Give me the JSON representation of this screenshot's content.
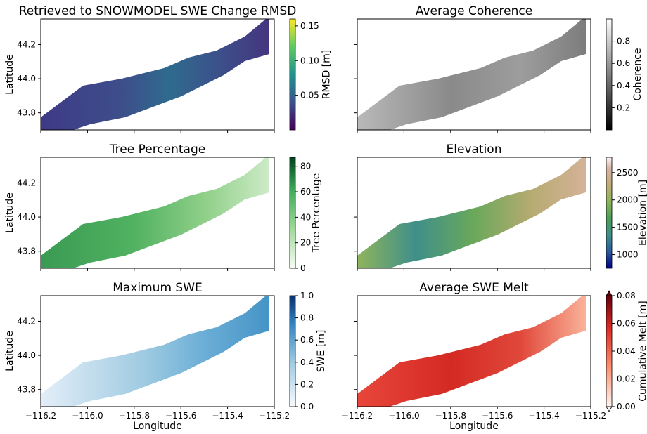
{
  "figure": {
    "x_tick_labels": [
      "−116.2",
      "−116.0",
      "−115.8",
      "−115.6",
      "−115.4",
      "−115.2"
    ],
    "y_tick_labels": [
      "43.8",
      "44.0",
      "44.2"
    ],
    "xlabel": "Longitude",
    "ylabel": "Latitude"
  },
  "chart_data": [
    {
      "type": "heatmap",
      "title": "Retrieved to SNOWMODEL SWE Change RMSD",
      "xlabel": "",
      "ylabel": "Latitude",
      "xlim": [
        -116.2,
        -115.2
      ],
      "ylim": [
        43.7,
        44.35
      ],
      "colormap": "viridis",
      "colorbar": {
        "label": "RMSD [m]",
        "range": [
          0,
          0.16
        ],
        "ticks": [
          0.05,
          0.1,
          0.15
        ],
        "tick_labels": [
          "0.05",
          "0.10",
          "0.15"
        ]
      }
    },
    {
      "type": "heatmap",
      "title": "Average Coherence",
      "xlabel": "",
      "ylabel": "",
      "xlim": [
        -116.2,
        -115.2
      ],
      "ylim": [
        43.7,
        44.35
      ],
      "colormap": "gray",
      "colorbar": {
        "label": "Coherence",
        "range": [
          0,
          1
        ],
        "ticks": [
          0.2,
          0.4,
          0.6,
          0.8
        ],
        "tick_labels": [
          "0.2",
          "0.4",
          "0.6",
          "0.8"
        ]
      }
    },
    {
      "type": "heatmap",
      "title": "Tree Percentage",
      "xlabel": "",
      "ylabel": "Latitude",
      "xlim": [
        -116.2,
        -115.2
      ],
      "ylim": [
        43.7,
        44.35
      ],
      "colormap": "Greens",
      "colorbar": {
        "label": "Tree Percentage",
        "range": [
          0,
          87
        ],
        "ticks": [
          0,
          20,
          40,
          60,
          80
        ],
        "tick_labels": [
          "0",
          "20",
          "40",
          "60",
          "80"
        ]
      }
    },
    {
      "type": "heatmap",
      "title": "Elevation",
      "xlabel": "",
      "ylabel": "",
      "xlim": [
        -116.2,
        -115.2
      ],
      "ylim": [
        43.7,
        44.35
      ],
      "colormap": "gist_earth",
      "colorbar": {
        "label": "Elevation [m]",
        "range": [
          750,
          2780
        ],
        "ticks": [
          1000,
          1500,
          2000,
          2500
        ],
        "tick_labels": [
          "1000",
          "1500",
          "2000",
          "2500"
        ]
      }
    },
    {
      "type": "heatmap",
      "title": "Maximum SWE",
      "xlabel": "Longitude",
      "ylabel": "Latitude",
      "xlim": [
        -116.2,
        -115.2
      ],
      "ylim": [
        43.7,
        44.35
      ],
      "colormap": "Blues",
      "colorbar": {
        "label": "SWE [m]",
        "range": [
          0,
          1.0
        ],
        "ticks": [
          0.0,
          0.2,
          0.4,
          0.6,
          0.8,
          1.0
        ],
        "tick_labels": [
          "0.0",
          "0.2",
          "0.4",
          "0.6",
          "0.8",
          "1.0"
        ]
      }
    },
    {
      "type": "heatmap",
      "title": "Average SWE Melt",
      "xlabel": "Longitude",
      "ylabel": "",
      "xlim": [
        -116.2,
        -115.2
      ],
      "ylim": [
        43.7,
        44.35
      ],
      "colormap": "Reds",
      "colorbar": {
        "label": "Cumulative Melt [m]",
        "range": [
          0,
          0.08
        ],
        "extend": "both",
        "ticks": [
          0.0,
          0.02,
          0.04,
          0.06,
          0.08
        ],
        "tick_labels": [
          "0.00",
          "0.02",
          "0.04",
          "0.06",
          "0.08"
        ]
      }
    }
  ]
}
